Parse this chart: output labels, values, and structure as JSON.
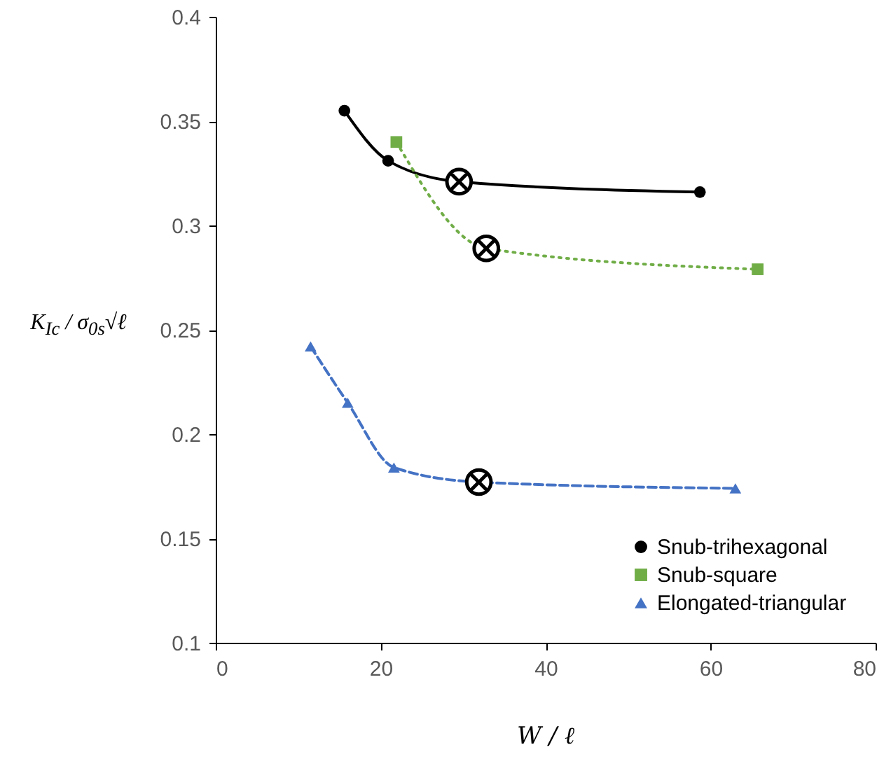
{
  "chart_data": {
    "type": "line",
    "xlabel": "W / ℓ",
    "ylabel": "K$_{Ic}$ / σ$_{0s}$√ℓ",
    "xlim": [
      0,
      80
    ],
    "xticks": [
      0,
      20,
      40,
      60,
      80
    ],
    "ylim": [
      0.1,
      0.4
    ],
    "yticks": [
      0.1,
      0.15,
      0.2,
      0.25,
      0.3,
      0.35,
      0.4
    ],
    "grid": false,
    "legend": "bottom right",
    "series": [
      {
        "name": "Snub-trihexagonal",
        "color": "#000000",
        "marker": "circle",
        "line_style": "solid",
        "x": [
          15.6,
          20.9,
          29.5,
          58.7
        ],
        "values": [
          0.355,
          0.331,
          0.321,
          0.316
        ]
      },
      {
        "name": "Snub-square",
        "color": "#70ad47",
        "marker": "square",
        "line_style": "dotted",
        "x": [
          21.9,
          32.8,
          65.7
        ],
        "values": [
          0.34,
          0.289,
          0.279
        ]
      },
      {
        "name": "Elongated-triangular",
        "color": "#4472c4",
        "marker": "triangle",
        "line_style": "dashed",
        "x": [
          11.5,
          16.0,
          21.6,
          31.9,
          63.0
        ],
        "values": [
          0.242,
          0.215,
          0.184,
          0.177,
          0.174
        ]
      },
      {
        "type": "scatter",
        "color": "#000000",
        "marker": "cross",
        "x": [
          29.5,
          32.8,
          31.9
        ],
        "values": [
          0.321,
          0.289,
          0.177
        ]
      }
    ]
  }
}
